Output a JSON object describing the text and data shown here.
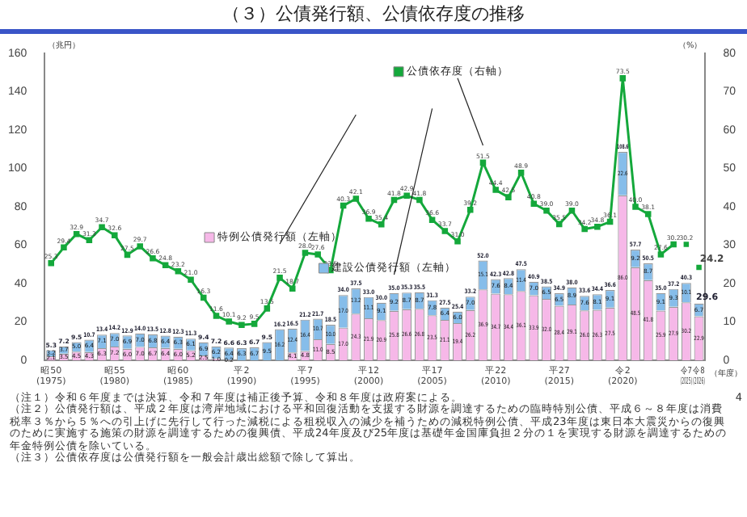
{
  "chart_data": {
    "type": "bar",
    "title": "（３）公債発行額、公債依存度の推移",
    "ylabel": "（兆円）",
    "y2label": "（%）",
    "xlabel": "（年度）",
    "categories": [
      "昭50\n(1975)",
      null,
      null,
      null,
      null,
      "昭55\n(1980)",
      null,
      null,
      null,
      null,
      "昭60\n(1985)",
      null,
      null,
      null,
      null,
      "平2\n(1990)",
      null,
      null,
      null,
      null,
      "平7\n(1995)",
      null,
      null,
      null,
      null,
      "平12\n(2000)",
      null,
      null,
      null,
      null,
      "平17\n(2005)",
      null,
      null,
      null,
      null,
      "平22\n(2010)",
      null,
      null,
      null,
      null,
      "平27\n(2015)",
      null,
      null,
      null,
      null,
      "令2\n(2020)",
      null,
      null,
      null,
      null,
      "令7\n(2025)",
      "令8\n(2026)"
    ],
    "stacked": true,
    "legend": "top",
    "grid": false,
    "ylim": [
      0,
      160
    ],
    "yticks": [
      0,
      20,
      40,
      60,
      80,
      100,
      120,
      140,
      160
    ],
    "y2lim": [
      0,
      80
    ],
    "y2ticks": [
      0,
      10,
      20,
      30,
      40,
      50,
      60,
      70,
      80
    ],
    "series": [
      {
        "name": "特例公債発行額（左軸）",
        "color": "#f6b8e8",
        "values": [
          2.1,
          3.5,
          4.5,
          4.3,
          6.3,
          7.2,
          6.0,
          7.0,
          6.7,
          6.4,
          6.0,
          5.2,
          2.5,
          1.0,
          0.2,
          null,
          null,
          null,
          null,
          4.1,
          4.8,
          11.0,
          8.5,
          17.0,
          24.3,
          21.9,
          20.9,
          25.8,
          26.6,
          26.8,
          23.5,
          21.1,
          19.4,
          26.2,
          36.9,
          34.7,
          34.4,
          36.1,
          33.9,
          32.0,
          28.4,
          29.1,
          26.0,
          26.3,
          27.5,
          86.0,
          48.5,
          41.8,
          25.9,
          27.9,
          30.2,
          22.9
        ],
        "value_labels": [
          "2.1",
          "3.5",
          "4.5",
          "4.3",
          "6.3",
          "7.2",
          "6.0",
          "7.0",
          "6.7",
          "6.4",
          "6.0",
          "5.2",
          "2.5",
          "1.0",
          "0.2",
          null,
          null,
          null,
          null,
          "4.1",
          "4.8",
          "11.0",
          "8.5",
          "17.0",
          "24.3",
          "21.9",
          "20.9",
          "25.8",
          "26.6",
          "26.8",
          "23.5",
          "21.1",
          "19.4",
          "26.2",
          "36.9",
          "34.7",
          "34.4",
          "36.1",
          "33.9",
          "32.0",
          "28.4",
          "29.1",
          "26.0",
          "26.3",
          "27.5",
          "86.0",
          "48.5",
          "41.8",
          "25.9",
          "27.9",
          "30.2",
          "22.9"
        ]
      },
      {
        "name": "建設公債発行額（左軸）",
        "color": "#86bdea",
        "values": [
          3.2,
          3.7,
          5.0,
          6.4,
          7.1,
          7.0,
          6.9,
          7.0,
          6.8,
          6.4,
          6.3,
          6.1,
          6.9,
          6.2,
          6.4,
          6.3,
          6.7,
          9.5,
          16.2,
          12.4,
          16.4,
          10.7,
          10.0,
          17.0,
          13.2,
          11.1,
          9.1,
          9.2,
          8.7,
          8.7,
          7.8,
          6.4,
          6.0,
          7.0,
          15.1,
          7.6,
          8.4,
          11.4,
          7.0,
          6.5,
          6.5,
          8.9,
          7.6,
          8.1,
          9.1,
          22.6,
          9.2,
          8.7,
          9.1,
          9.3,
          10.1,
          6.7
        ],
        "value_labels": [
          "3.2",
          "3.7",
          "5.0",
          "6.4",
          "7.1",
          "7.0",
          "6.9",
          "7.0",
          "6.8",
          "6.4",
          "6.3",
          "6.1",
          "6.9",
          "6.2",
          "6.4",
          "6.3",
          "6.7",
          "9.5",
          "16.2",
          "12.4",
          "16.4",
          "10.7",
          "10.0",
          "17.0",
          "13.2",
          "11.1",
          "9.1",
          "9.2",
          "8.7",
          "8.7",
          "7.8",
          "6.4",
          "6.0",
          "7.0",
          "15.1",
          "7.6",
          "8.4",
          "11.4",
          "7.0",
          "6.5",
          "6.5",
          "8.9",
          "7.6",
          "8.1",
          "9.1",
          "22.6",
          "9.2",
          "8.7",
          "9.1",
          "9.3",
          "10.1",
          "6.7"
        ]
      },
      {
        "name": "公債依存度（右軸）",
        "type": "line",
        "axis": "y2",
        "color": "#14a83b",
        "marker": "square",
        "values": [
          25.3,
          29.4,
          32.9,
          31.3,
          34.7,
          32.6,
          27.5,
          29.7,
          26.6,
          24.8,
          23.2,
          21.0,
          16.3,
          11.6,
          10.1,
          9.2,
          9.5,
          13.5,
          21.5,
          18.7,
          28.0,
          27.6,
          23.5,
          40.3,
          42.1,
          36.9,
          35.4,
          41.8,
          42.9,
          41.8,
          36.6,
          33.7,
          31.0,
          39.2,
          51.5,
          44.4,
          42.5,
          48.9,
          40.8,
          39.0,
          35.5,
          39.0,
          34.2,
          34.8,
          36.1,
          73.5,
          40.0,
          38.1,
          27.6,
          30.2,
          null,
          null
        ],
        "value_labels": [
          "25.3",
          "29.4",
          "32.9",
          "31.3",
          "34.7",
          "32.6",
          "27.5",
          "29.7",
          "26.6",
          "24.8",
          "23.2",
          "21.0",
          "16.3",
          "11.6",
          "10.1",
          "9.2",
          "9.5",
          "13.5",
          "21.5",
          "18.7",
          "28.0",
          "27.6",
          "23.5",
          "40.3",
          "42.1",
          "36.9",
          "35.4",
          "41.8",
          "42.9",
          "41.8",
          "36.6",
          "33.7",
          "31.0",
          "39.2",
          "51.5",
          "44.4",
          "42.5",
          "48.9",
          "40.8",
          "39.0",
          "35.5",
          "39.0",
          "34.2",
          "34.8",
          "36.1",
          "73.5",
          "40.0",
          "38.1",
          "27.6",
          "30.2",
          null,
          null
        ]
      },
      {
        "type": "scatter",
        "axis": "y2",
        "color": "#14a83b",
        "marker": "square",
        "values": [
          null,
          null,
          null,
          null,
          null,
          null,
          null,
          null,
          null,
          null,
          null,
          null,
          null,
          null,
          null,
          null,
          null,
          null,
          null,
          null,
          null,
          null,
          null,
          null,
          null,
          null,
          null,
          null,
          null,
          null,
          null,
          null,
          null,
          null,
          null,
          null,
          null,
          null,
          null,
          null,
          null,
          null,
          null,
          null,
          null,
          null,
          null,
          null,
          null,
          null,
          30.2,
          24.2
        ],
        "value_labels": [
          null,
          null,
          null,
          null,
          null,
          null,
          null,
          null,
          null,
          null,
          null,
          null,
          null,
          null,
          null,
          null,
          null,
          null,
          null,
          null,
          null,
          null,
          null,
          null,
          null,
          null,
          null,
          null,
          null,
          null,
          null,
          null,
          null,
          null,
          null,
          null,
          null,
          null,
          null,
          null,
          null,
          null,
          null,
          null,
          null,
          null,
          null,
          null,
          null,
          null,
          "30.2",
          "24.2"
        ]
      }
    ],
    "totals": [
      "5.3",
      "7.2",
      "9.5",
      "10.7",
      "13.4",
      "14.2",
      "12.9",
      "14.0",
      "13.5",
      "12.8",
      "12.3",
      "11.3",
      "9.4",
      "7.2",
      "6.6",
      "6.3",
      "6.7",
      "9.5",
      "16.2",
      "16.5",
      "21.2",
      "21.7",
      "18.5",
      "34.0",
      "37.5",
      "33.0",
      "30.0",
      "35.0",
      "35.3",
      "35.5",
      "31.3",
      "27.5",
      "25.4",
      "33.2",
      "52.0",
      "42.3",
      "42.8",
      "47.5",
      "40.9",
      "38.5",
      "34.9",
      "38.0",
      "33.6",
      "34.4",
      "36.6",
      "108.6",
      "57.7",
      "50.5",
      "35.0",
      "37.2",
      "40.3",
      "29.6"
    ],
    "annotations": [
      "（注１）令和６年度までは決算、令和７年度は補正後予算、令和８年度は政府案による。",
      "（注２）公債発行額は、平成２年度は湾岸地域における平和回復活動を支援する財源を調達するための臨時特別公債、平成６～８年度は消費税率３％から５％への引上げに先行して行った減税による租税収入の減少を補うための減税特例公債、平成23年度は東日本大震災からの復興のために実施する施策の財源を調達するための復興債、平成24年度及び25年度は基礎年金国庫負担２分の１を実現する財源を調達するための年金特例公債を除いている。",
      "（注３）公債依存度は公債発行額を一般会計歳出総額で除して算出。",
      "4"
    ]
  }
}
